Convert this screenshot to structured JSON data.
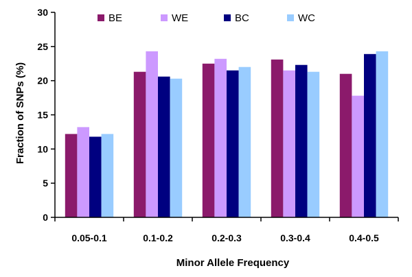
{
  "chart_data": {
    "type": "bar",
    "title": "",
    "xlabel": "Minor Allele Frequency",
    "ylabel": "Fraction of SNPs (%)",
    "ylim": [
      0,
      30
    ],
    "yticks": [
      0,
      5,
      10,
      15,
      20,
      25,
      30
    ],
    "categories": [
      "0.05-0.1",
      "0.1-0.2",
      "0.2-0.3",
      "0.3-0.4",
      "0.4-0.5"
    ],
    "legend_position": "top",
    "grid": false,
    "series": [
      {
        "name": "BE",
        "color": "#8b1a6b",
        "values": [
          12.2,
          21.3,
          22.5,
          23.1,
          21.0
        ]
      },
      {
        "name": "WE",
        "color": "#cc99ff",
        "values": [
          13.2,
          24.3,
          23.2,
          21.5,
          17.8
        ]
      },
      {
        "name": "BC",
        "color": "#000080",
        "values": [
          11.8,
          20.6,
          21.5,
          22.3,
          23.9
        ]
      },
      {
        "name": "WC",
        "color": "#99ccff",
        "values": [
          12.2,
          20.3,
          22.0,
          21.3,
          24.3
        ]
      }
    ]
  }
}
